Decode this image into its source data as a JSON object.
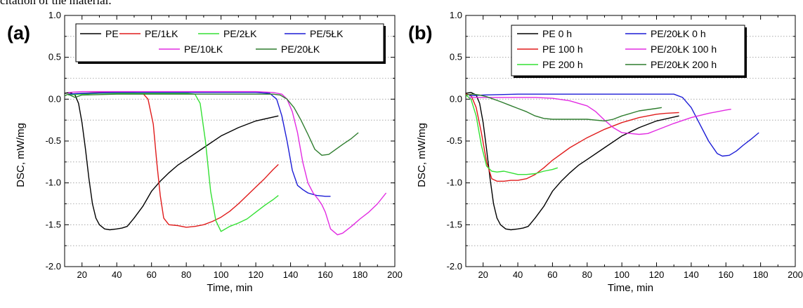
{
  "caption_fragment": "citation of the material.",
  "chart_data": [
    {
      "type": "line",
      "panel_label": "(a)",
      "xlabel": "Time, min",
      "ylabel": "DSC, mW/mg",
      "xlim": [
        10,
        200
      ],
      "ylim": [
        -2.0,
        1.0
      ],
      "x_ticks": [
        "20",
        "40",
        "60",
        "80",
        "100",
        "120",
        "140",
        "160",
        "180",
        "200"
      ],
      "y_ticks": [
        "1.0",
        "0.5",
        "0.0",
        "-0.5",
        "-1.0",
        "-1.5",
        "-2.0"
      ],
      "grid": "dotted horizontal",
      "legend": {
        "placement": "top",
        "columns": 4
      },
      "series": [
        {
          "name": "PE",
          "color": "#000000",
          "x": [
            10,
            13,
            16,
            18,
            20,
            22,
            24,
            26,
            28,
            30,
            33,
            36,
            40,
            43,
            46,
            50,
            55,
            60,
            65,
            70,
            75,
            80,
            90,
            100,
            110,
            120,
            133
          ],
          "y": [
            0.07,
            0.08,
            0.05,
            -0.05,
            -0.28,
            -0.6,
            -0.95,
            -1.25,
            -1.42,
            -1.5,
            -1.55,
            -1.56,
            -1.55,
            -1.54,
            -1.52,
            -1.42,
            -1.28,
            -1.1,
            -0.98,
            -0.88,
            -0.79,
            -0.72,
            -0.58,
            -0.44,
            -0.34,
            -0.26,
            -0.2
          ]
        },
        {
          "name": "PE/1ŁK",
          "color": "#e01b1b",
          "x": [
            12,
            20,
            30,
            40,
            50,
            55,
            58,
            61,
            63,
            65,
            67,
            70,
            75,
            80,
            85,
            90,
            95,
            100,
            105,
            110,
            115,
            120,
            125,
            130,
            133
          ],
          "y": [
            0.06,
            0.07,
            0.08,
            0.08,
            0.08,
            0.07,
            0.0,
            -0.3,
            -0.75,
            -1.15,
            -1.42,
            -1.5,
            -1.51,
            -1.53,
            -1.52,
            -1.5,
            -1.46,
            -1.41,
            -1.34,
            -1.25,
            -1.15,
            -1.05,
            -0.95,
            -0.84,
            -0.78
          ]
        },
        {
          "name": "PE/2ŁK",
          "color": "#33e033",
          "x": [
            12,
            20,
            30,
            40,
            50,
            60,
            70,
            80,
            85,
            88,
            91,
            94,
            97,
            100,
            105,
            110,
            115,
            120,
            125,
            130,
            133
          ],
          "y": [
            0.05,
            0.06,
            0.07,
            0.07,
            0.07,
            0.07,
            0.07,
            0.07,
            0.06,
            -0.05,
            -0.5,
            -1.1,
            -1.45,
            -1.58,
            -1.52,
            -1.48,
            -1.43,
            -1.35,
            -1.27,
            -1.2,
            -1.15
          ]
        },
        {
          "name": "PE/5ŁK",
          "color": "#1c1cd6",
          "x": [
            12,
            20,
            40,
            60,
            80,
            100,
            120,
            128,
            132,
            135,
            138,
            141,
            144,
            147,
            150,
            155,
            160,
            163
          ],
          "y": [
            0.06,
            0.07,
            0.08,
            0.08,
            0.08,
            0.08,
            0.08,
            0.07,
            0.0,
            -0.2,
            -0.5,
            -0.85,
            -1.03,
            -1.08,
            -1.12,
            -1.15,
            -1.16,
            -1.16
          ]
        },
        {
          "name": "PE/10ŁK",
          "color": "#e22be2",
          "x": [
            12,
            20,
            40,
            60,
            80,
            100,
            120,
            130,
            135,
            138,
            141,
            144,
            147,
            150,
            153,
            156,
            158,
            160,
            163,
            167,
            170,
            175,
            180,
            185,
            190,
            195
          ],
          "y": [
            0.08,
            0.09,
            0.09,
            0.09,
            0.09,
            0.09,
            0.09,
            0.08,
            0.06,
            0.0,
            -0.15,
            -0.4,
            -0.75,
            -1.0,
            -1.12,
            -1.2,
            -1.26,
            -1.35,
            -1.55,
            -1.62,
            -1.6,
            -1.52,
            -1.43,
            -1.35,
            -1.25,
            -1.12
          ]
        },
        {
          "name": "PE/20ŁK",
          "color": "#2e7d2e",
          "x": [
            10,
            12,
            14,
            16,
            20,
            40,
            60,
            80,
            100,
            120,
            130,
            134,
            138,
            142,
            146,
            150,
            154,
            158,
            162,
            166,
            170,
            175,
            179
          ],
          "y": [
            0.04,
            0.06,
            0.04,
            0.02,
            0.05,
            0.06,
            0.06,
            0.06,
            0.06,
            0.06,
            0.06,
            0.05,
            0.0,
            -0.1,
            -0.25,
            -0.42,
            -0.6,
            -0.67,
            -0.66,
            -0.6,
            -0.54,
            -0.47,
            -0.4
          ]
        }
      ]
    },
    {
      "type": "line",
      "panel_label": "(b)",
      "xlabel": "Time, min",
      "ylabel": "DSC, mW/mg",
      "xlim": [
        10,
        200
      ],
      "ylim": [
        -2.0,
        1.0
      ],
      "x_ticks": [
        "20",
        "40",
        "60",
        "80",
        "100",
        "120",
        "140",
        "160",
        "180",
        "200"
      ],
      "y_ticks": [
        "1.0",
        "0.5",
        "0.0",
        "-0.5",
        "-1.0",
        "-1.5",
        "-2.0"
      ],
      "grid": "dotted horizontal",
      "legend": {
        "placement": "top-right",
        "columns": 2
      },
      "series": [
        {
          "name": "PE 0 h",
          "color": "#000000",
          "x": [
            10,
            13,
            16,
            18,
            20,
            22,
            24,
            26,
            28,
            30,
            33,
            36,
            40,
            43,
            46,
            50,
            55,
            60,
            65,
            70,
            75,
            80,
            90,
            100,
            110,
            120,
            133
          ],
          "y": [
            0.07,
            0.08,
            0.05,
            -0.05,
            -0.28,
            -0.6,
            -0.95,
            -1.25,
            -1.42,
            -1.5,
            -1.55,
            -1.56,
            -1.55,
            -1.54,
            -1.52,
            -1.42,
            -1.28,
            -1.1,
            -0.98,
            -0.88,
            -0.79,
            -0.72,
            -0.58,
            -0.44,
            -0.34,
            -0.26,
            -0.2
          ]
        },
        {
          "name": "PE 100 h",
          "color": "#e01b1b",
          "x": [
            10,
            13,
            16,
            19,
            22,
            25,
            28,
            32,
            36,
            40,
            45,
            50,
            55,
            60,
            70,
            80,
            90,
            100,
            110,
            120,
            125,
            133
          ],
          "y": [
            0.06,
            0.05,
            -0.1,
            -0.4,
            -0.75,
            -0.95,
            -0.98,
            -0.98,
            -0.97,
            -0.97,
            -0.95,
            -0.9,
            -0.82,
            -0.73,
            -0.58,
            -0.46,
            -0.36,
            -0.28,
            -0.22,
            -0.18,
            -0.17,
            -0.16
          ]
        },
        {
          "name": "PE 200 h",
          "color": "#33e033",
          "x": [
            10,
            13,
            16,
            19,
            22,
            25,
            28,
            32,
            36,
            40,
            45,
            50,
            55,
            60,
            63
          ],
          "y": [
            0.05,
            0.0,
            -0.2,
            -0.55,
            -0.8,
            -0.86,
            -0.87,
            -0.86,
            -0.88,
            -0.9,
            -0.9,
            -0.89,
            -0.86,
            -0.84,
            -0.82
          ]
        },
        {
          "name": "PE/20ŁK 0 h",
          "color": "#1c1cd6",
          "x": [
            12,
            20,
            40,
            60,
            80,
            100,
            120,
            130,
            135,
            140,
            145,
            150,
            155,
            158,
            162,
            166,
            170,
            175,
            179
          ],
          "y": [
            0.04,
            0.05,
            0.06,
            0.06,
            0.06,
            0.06,
            0.06,
            0.06,
            0.02,
            -0.1,
            -0.3,
            -0.5,
            -0.65,
            -0.68,
            -0.67,
            -0.62,
            -0.55,
            -0.47,
            -0.4
          ]
        },
        {
          "name": "PE/20ŁK 100 h",
          "color": "#e22be2",
          "x": [
            12,
            20,
            30,
            40,
            50,
            60,
            70,
            80,
            85,
            90,
            95,
            100,
            105,
            110,
            115,
            120,
            130,
            140,
            150,
            160,
            163
          ],
          "y": [
            0.02,
            0.02,
            0.02,
            0.02,
            0.02,
            0.01,
            -0.02,
            -0.08,
            -0.15,
            -0.25,
            -0.34,
            -0.4,
            -0.41,
            -0.42,
            -0.41,
            -0.37,
            -0.29,
            -0.22,
            -0.17,
            -0.13,
            -0.12
          ]
        },
        {
          "name": "PE/20ŁK 200 h",
          "color": "#2e7d2e",
          "x": [
            10,
            14,
            18,
            22,
            26,
            30,
            35,
            40,
            45,
            50,
            55,
            60,
            70,
            80,
            90,
            95,
            100,
            110,
            120,
            123
          ],
          "y": [
            0.05,
            0.06,
            0.05,
            0.03,
            0.0,
            -0.03,
            -0.07,
            -0.11,
            -0.15,
            -0.2,
            -0.23,
            -0.24,
            -0.24,
            -0.24,
            -0.26,
            -0.24,
            -0.2,
            -0.14,
            -0.11,
            -0.1
          ]
        }
      ]
    }
  ]
}
